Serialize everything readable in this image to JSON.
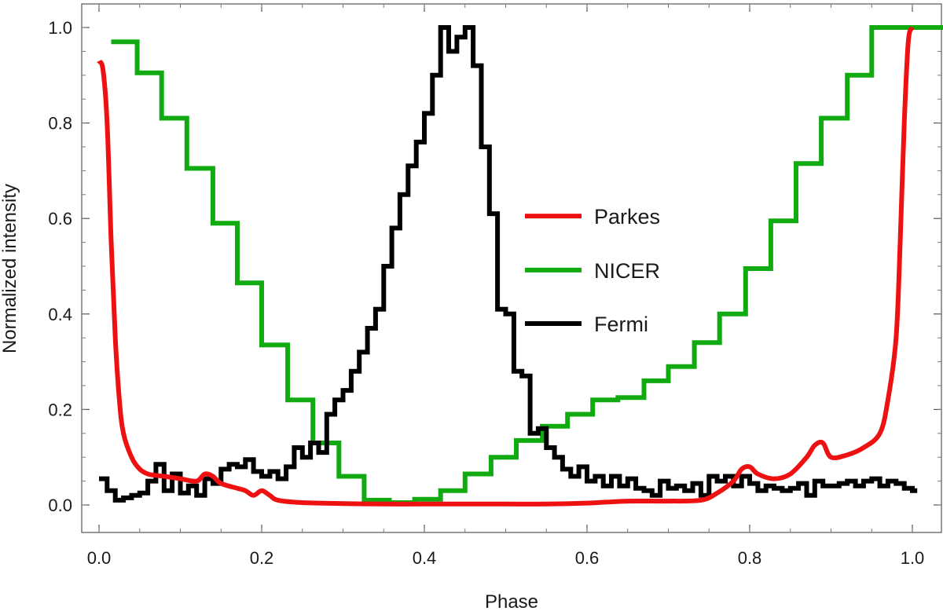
{
  "chart_data": {
    "type": "line",
    "xlabel": "Phase",
    "ylabel": "Normalized intensity",
    "xlim": [
      -0.03,
      1.07
    ],
    "ylim": [
      -0.06,
      1.05
    ],
    "xticks": [
      0.0,
      0.2,
      0.4,
      0.6,
      0.8,
      1.0
    ],
    "xtick_labels": [
      "0.0",
      "0.2",
      "0.4",
      "0.6",
      "0.8",
      "1.0"
    ],
    "yticks": [
      0.0,
      0.2,
      0.4,
      0.6,
      0.8,
      1.0
    ],
    "ytick_labels": [
      "0.0",
      "0.2",
      "0.4",
      "0.6",
      "0.8",
      "1.0"
    ],
    "grid": false,
    "legend_position": "center-right",
    "series": [
      {
        "name": "Parkes",
        "color": "#ee1111",
        "style": "smooth",
        "x": [
          0.0,
          0.005,
          0.01,
          0.015,
          0.02,
          0.025,
          0.03,
          0.04,
          0.05,
          0.06,
          0.07,
          0.08,
          0.1,
          0.12,
          0.13,
          0.14,
          0.15,
          0.17,
          0.18,
          0.19,
          0.2,
          0.21,
          0.22,
          0.25,
          0.3,
          0.35,
          0.4,
          0.45,
          0.5,
          0.55,
          0.6,
          0.65,
          0.7,
          0.74,
          0.76,
          0.78,
          0.79,
          0.8,
          0.81,
          0.83,
          0.85,
          0.87,
          0.88,
          0.89,
          0.9,
          0.92,
          0.94,
          0.96,
          0.97,
          0.98,
          0.985,
          0.99,
          0.995,
          1.0
        ],
        "y": [
          0.93,
          0.91,
          0.8,
          0.55,
          0.35,
          0.22,
          0.15,
          0.1,
          0.075,
          0.065,
          0.062,
          0.06,
          0.055,
          0.05,
          0.065,
          0.06,
          0.045,
          0.035,
          0.03,
          0.02,
          0.03,
          0.02,
          0.01,
          0.005,
          0.003,
          0.002,
          0.002,
          0.002,
          0.002,
          0.002,
          0.004,
          0.008,
          0.008,
          0.01,
          0.025,
          0.05,
          0.075,
          0.08,
          0.065,
          0.055,
          0.065,
          0.1,
          0.125,
          0.13,
          0.1,
          0.105,
          0.12,
          0.15,
          0.22,
          0.35,
          0.55,
          0.8,
          0.97,
          1.0
        ]
      },
      {
        "name": "NICER",
        "color": "#11aa11",
        "style": "step",
        "x": [
          0.015,
          0.047,
          0.077,
          0.108,
          0.14,
          0.17,
          0.2,
          0.232,
          0.263,
          0.295,
          0.326,
          0.357,
          0.388,
          0.42,
          0.45,
          0.482,
          0.513,
          0.545,
          0.576,
          0.607,
          0.638,
          0.67,
          0.7,
          0.732,
          0.763,
          0.795,
          0.826,
          0.857,
          0.888,
          0.92,
          0.95,
          0.982,
          1.02
        ],
        "y": [
          0.97,
          0.905,
          0.81,
          0.705,
          0.59,
          0.465,
          0.335,
          0.22,
          0.13,
          0.06,
          0.01,
          0.005,
          0.012,
          0.03,
          0.065,
          0.1,
          0.135,
          0.165,
          0.19,
          0.22,
          0.225,
          0.26,
          0.29,
          0.34,
          0.4,
          0.495,
          0.595,
          0.715,
          0.81,
          0.9,
          1.0,
          1.0,
          1.0
        ]
      },
      {
        "name": "Fermi",
        "color": "#000000",
        "style": "step",
        "x": [
          0.0,
          0.01,
          0.02,
          0.03,
          0.04,
          0.05,
          0.06,
          0.07,
          0.08,
          0.09,
          0.1,
          0.11,
          0.12,
          0.13,
          0.14,
          0.15,
          0.16,
          0.17,
          0.18,
          0.19,
          0.2,
          0.21,
          0.22,
          0.23,
          0.24,
          0.25,
          0.26,
          0.27,
          0.28,
          0.29,
          0.3,
          0.31,
          0.32,
          0.33,
          0.34,
          0.35,
          0.36,
          0.37,
          0.38,
          0.39,
          0.4,
          0.41,
          0.42,
          0.43,
          0.44,
          0.45,
          0.46,
          0.47,
          0.48,
          0.49,
          0.5,
          0.51,
          0.52,
          0.53,
          0.54,
          0.55,
          0.56,
          0.57,
          0.58,
          0.59,
          0.6,
          0.61,
          0.62,
          0.63,
          0.64,
          0.65,
          0.66,
          0.67,
          0.68,
          0.69,
          0.7,
          0.71,
          0.72,
          0.73,
          0.74,
          0.75,
          0.76,
          0.77,
          0.78,
          0.79,
          0.8,
          0.81,
          0.82,
          0.83,
          0.84,
          0.85,
          0.86,
          0.87,
          0.88,
          0.89,
          0.9,
          0.91,
          0.92,
          0.93,
          0.94,
          0.95,
          0.96,
          0.97,
          0.98,
          0.99,
          1.0
        ],
        "y": [
          0.055,
          0.03,
          0.01,
          0.015,
          0.02,
          0.025,
          0.05,
          0.085,
          0.03,
          0.065,
          0.025,
          0.04,
          0.02,
          0.055,
          0.045,
          0.075,
          0.085,
          0.08,
          0.095,
          0.07,
          0.06,
          0.07,
          0.055,
          0.08,
          0.12,
          0.1,
          0.13,
          0.11,
          0.19,
          0.22,
          0.24,
          0.28,
          0.32,
          0.37,
          0.41,
          0.5,
          0.58,
          0.65,
          0.71,
          0.76,
          0.82,
          0.9,
          1.0,
          0.95,
          0.98,
          1.0,
          0.92,
          0.75,
          0.61,
          0.41,
          0.4,
          0.28,
          0.27,
          0.15,
          0.16,
          0.12,
          0.1,
          0.075,
          0.06,
          0.08,
          0.05,
          0.06,
          0.04,
          0.06,
          0.04,
          0.055,
          0.035,
          0.03,
          0.02,
          0.05,
          0.035,
          0.04,
          0.03,
          0.045,
          0.02,
          0.06,
          0.05,
          0.06,
          0.04,
          0.06,
          0.045,
          0.03,
          0.04,
          0.035,
          0.03,
          0.035,
          0.045,
          0.02,
          0.05,
          0.04,
          0.04,
          0.045,
          0.05,
          0.04,
          0.05,
          0.055,
          0.04,
          0.05,
          0.045,
          0.035,
          0.03
        ]
      }
    ]
  }
}
